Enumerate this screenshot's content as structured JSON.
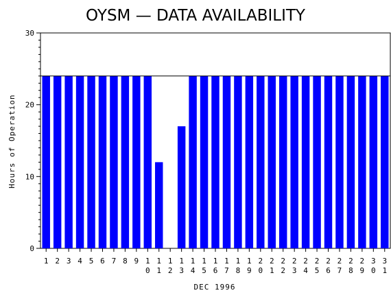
{
  "chart_data": {
    "type": "bar",
    "title": "OYSM — DATA AVAILABILITY",
    "xlabel": "DEC 1996",
    "ylabel": "Hours of Operation",
    "ylim": [
      0,
      30
    ],
    "yticks": [
      0,
      10,
      20,
      30
    ],
    "reference_line": 24,
    "categories": [
      "1",
      "2",
      "3",
      "4",
      "5",
      "6",
      "7",
      "8",
      "9",
      "10",
      "11",
      "12",
      "13",
      "14",
      "15",
      "16",
      "17",
      "18",
      "19",
      "20",
      "21",
      "22",
      "23",
      "24",
      "25",
      "26",
      "27",
      "28",
      "29",
      "30",
      "31"
    ],
    "values": [
      24,
      24,
      24,
      24,
      24,
      24,
      24,
      24,
      24,
      24,
      12,
      0,
      17,
      24,
      24,
      24,
      24,
      24,
      24,
      24,
      24,
      24,
      24,
      24,
      24,
      24,
      24,
      24,
      24,
      24,
      24
    ],
    "bar_color": "#0000ff",
    "grid": false
  }
}
